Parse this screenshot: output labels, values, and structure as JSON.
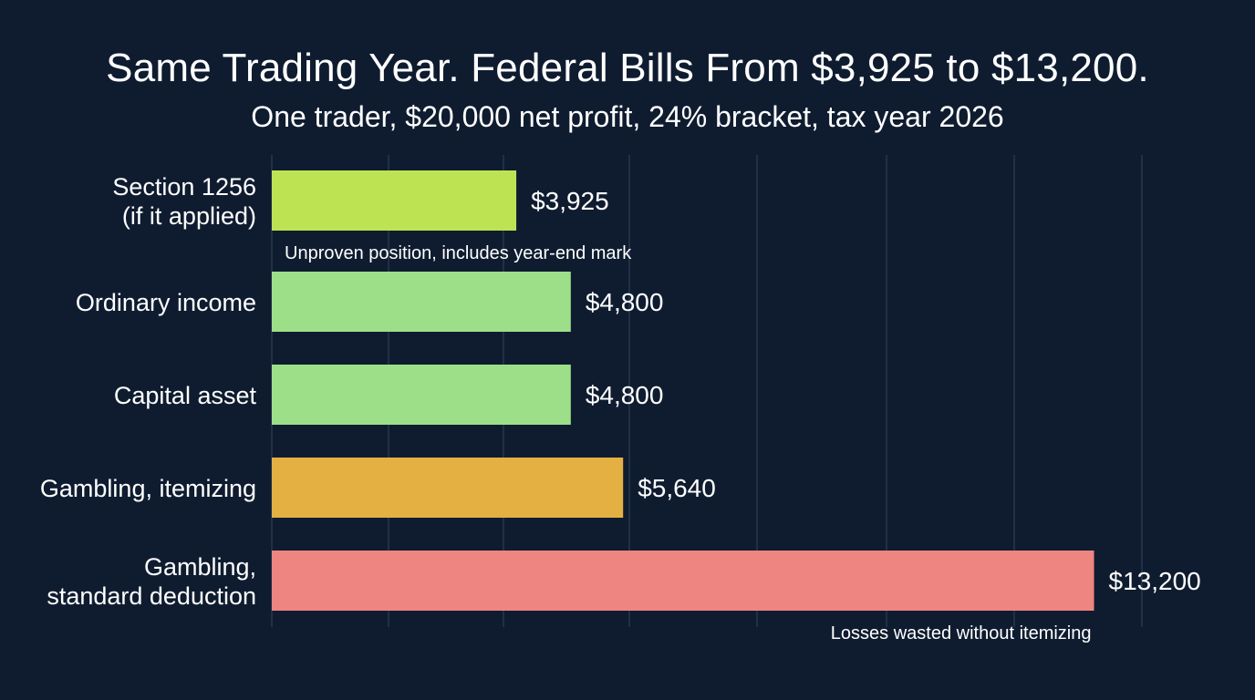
{
  "chart_data": {
    "type": "bar",
    "orientation": "horizontal",
    "title": "Same Trading Year. Federal Bills From $3,925 to $13,200.",
    "subtitle": "One trader, $20,000 net profit, 24% bracket, tax year 2026",
    "categories": [
      [
        "Section 1256",
        "(if it applied)"
      ],
      [
        "Ordinary income"
      ],
      [
        "Capital asset"
      ],
      [
        "Gambling, itemizing"
      ],
      [
        "Gambling,",
        "standard deduction"
      ]
    ],
    "values": [
      3925,
      4800,
      4800,
      5640,
      13200
    ],
    "value_labels": [
      "$3,925",
      "$4,800",
      "$4,800",
      "$5,640",
      "$13,200"
    ],
    "colors": [
      "#bde353",
      "#9ddf88",
      "#9ddf88",
      "#e5b042",
      "#ef8580"
    ],
    "annotations": [
      {
        "bar_index": 0,
        "text": "Unproven position, includes year-end mark",
        "anchor": "start"
      },
      {
        "bar_index": 4,
        "text": "Losses wasted without itemizing",
        "anchor": "end"
      }
    ],
    "xlim": [
      0,
      13500
    ],
    "grid": true,
    "x_axis_labels": false
  }
}
